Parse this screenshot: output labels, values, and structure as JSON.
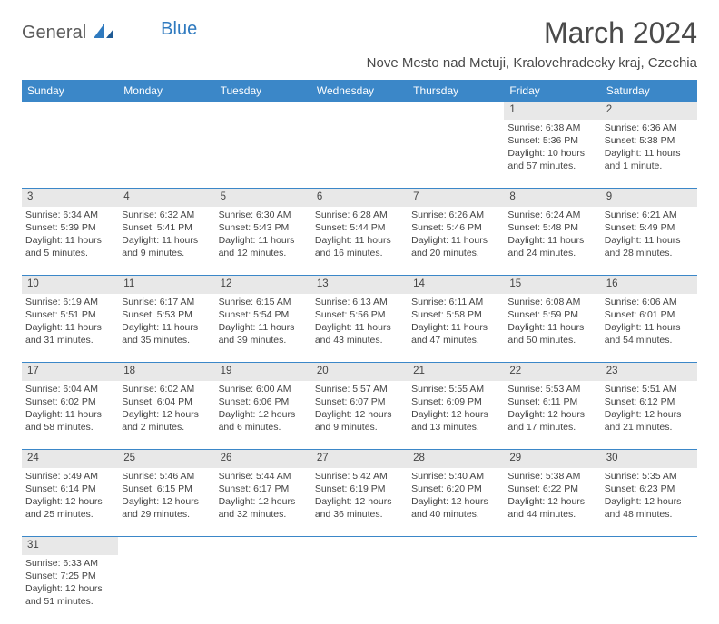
{
  "logo": {
    "text1": "General",
    "text2": "Blue"
  },
  "title": "March 2024",
  "location": "Nove Mesto nad Metuji, Kralovehradecky kraj, Czechia",
  "weekdays": [
    "Sunday",
    "Monday",
    "Tuesday",
    "Wednesday",
    "Thursday",
    "Friday",
    "Saturday"
  ],
  "header_bg": "#3b87c8",
  "header_fg": "#ffffff",
  "daynum_bg": "#e8e8e8",
  "divider_color": "#3b87c8",
  "weeks": [
    [
      null,
      null,
      null,
      null,
      null,
      {
        "n": "1",
        "sr": "Sunrise: 6:38 AM",
        "ss": "Sunset: 5:36 PM",
        "d1": "Daylight: 10 hours",
        "d2": "and 57 minutes."
      },
      {
        "n": "2",
        "sr": "Sunrise: 6:36 AM",
        "ss": "Sunset: 5:38 PM",
        "d1": "Daylight: 11 hours",
        "d2": "and 1 minute."
      }
    ],
    [
      {
        "n": "3",
        "sr": "Sunrise: 6:34 AM",
        "ss": "Sunset: 5:39 PM",
        "d1": "Daylight: 11 hours",
        "d2": "and 5 minutes."
      },
      {
        "n": "4",
        "sr": "Sunrise: 6:32 AM",
        "ss": "Sunset: 5:41 PM",
        "d1": "Daylight: 11 hours",
        "d2": "and 9 minutes."
      },
      {
        "n": "5",
        "sr": "Sunrise: 6:30 AM",
        "ss": "Sunset: 5:43 PM",
        "d1": "Daylight: 11 hours",
        "d2": "and 12 minutes."
      },
      {
        "n": "6",
        "sr": "Sunrise: 6:28 AM",
        "ss": "Sunset: 5:44 PM",
        "d1": "Daylight: 11 hours",
        "d2": "and 16 minutes."
      },
      {
        "n": "7",
        "sr": "Sunrise: 6:26 AM",
        "ss": "Sunset: 5:46 PM",
        "d1": "Daylight: 11 hours",
        "d2": "and 20 minutes."
      },
      {
        "n": "8",
        "sr": "Sunrise: 6:24 AM",
        "ss": "Sunset: 5:48 PM",
        "d1": "Daylight: 11 hours",
        "d2": "and 24 minutes."
      },
      {
        "n": "9",
        "sr": "Sunrise: 6:21 AM",
        "ss": "Sunset: 5:49 PM",
        "d1": "Daylight: 11 hours",
        "d2": "and 28 minutes."
      }
    ],
    [
      {
        "n": "10",
        "sr": "Sunrise: 6:19 AM",
        "ss": "Sunset: 5:51 PM",
        "d1": "Daylight: 11 hours",
        "d2": "and 31 minutes."
      },
      {
        "n": "11",
        "sr": "Sunrise: 6:17 AM",
        "ss": "Sunset: 5:53 PM",
        "d1": "Daylight: 11 hours",
        "d2": "and 35 minutes."
      },
      {
        "n": "12",
        "sr": "Sunrise: 6:15 AM",
        "ss": "Sunset: 5:54 PM",
        "d1": "Daylight: 11 hours",
        "d2": "and 39 minutes."
      },
      {
        "n": "13",
        "sr": "Sunrise: 6:13 AM",
        "ss": "Sunset: 5:56 PM",
        "d1": "Daylight: 11 hours",
        "d2": "and 43 minutes."
      },
      {
        "n": "14",
        "sr": "Sunrise: 6:11 AM",
        "ss": "Sunset: 5:58 PM",
        "d1": "Daylight: 11 hours",
        "d2": "and 47 minutes."
      },
      {
        "n": "15",
        "sr": "Sunrise: 6:08 AM",
        "ss": "Sunset: 5:59 PM",
        "d1": "Daylight: 11 hours",
        "d2": "and 50 minutes."
      },
      {
        "n": "16",
        "sr": "Sunrise: 6:06 AM",
        "ss": "Sunset: 6:01 PM",
        "d1": "Daylight: 11 hours",
        "d2": "and 54 minutes."
      }
    ],
    [
      {
        "n": "17",
        "sr": "Sunrise: 6:04 AM",
        "ss": "Sunset: 6:02 PM",
        "d1": "Daylight: 11 hours",
        "d2": "and 58 minutes."
      },
      {
        "n": "18",
        "sr": "Sunrise: 6:02 AM",
        "ss": "Sunset: 6:04 PM",
        "d1": "Daylight: 12 hours",
        "d2": "and 2 minutes."
      },
      {
        "n": "19",
        "sr": "Sunrise: 6:00 AM",
        "ss": "Sunset: 6:06 PM",
        "d1": "Daylight: 12 hours",
        "d2": "and 6 minutes."
      },
      {
        "n": "20",
        "sr": "Sunrise: 5:57 AM",
        "ss": "Sunset: 6:07 PM",
        "d1": "Daylight: 12 hours",
        "d2": "and 9 minutes."
      },
      {
        "n": "21",
        "sr": "Sunrise: 5:55 AM",
        "ss": "Sunset: 6:09 PM",
        "d1": "Daylight: 12 hours",
        "d2": "and 13 minutes."
      },
      {
        "n": "22",
        "sr": "Sunrise: 5:53 AM",
        "ss": "Sunset: 6:11 PM",
        "d1": "Daylight: 12 hours",
        "d2": "and 17 minutes."
      },
      {
        "n": "23",
        "sr": "Sunrise: 5:51 AM",
        "ss": "Sunset: 6:12 PM",
        "d1": "Daylight: 12 hours",
        "d2": "and 21 minutes."
      }
    ],
    [
      {
        "n": "24",
        "sr": "Sunrise: 5:49 AM",
        "ss": "Sunset: 6:14 PM",
        "d1": "Daylight: 12 hours",
        "d2": "and 25 minutes."
      },
      {
        "n": "25",
        "sr": "Sunrise: 5:46 AM",
        "ss": "Sunset: 6:15 PM",
        "d1": "Daylight: 12 hours",
        "d2": "and 29 minutes."
      },
      {
        "n": "26",
        "sr": "Sunrise: 5:44 AM",
        "ss": "Sunset: 6:17 PM",
        "d1": "Daylight: 12 hours",
        "d2": "and 32 minutes."
      },
      {
        "n": "27",
        "sr": "Sunrise: 5:42 AM",
        "ss": "Sunset: 6:19 PM",
        "d1": "Daylight: 12 hours",
        "d2": "and 36 minutes."
      },
      {
        "n": "28",
        "sr": "Sunrise: 5:40 AM",
        "ss": "Sunset: 6:20 PM",
        "d1": "Daylight: 12 hours",
        "d2": "and 40 minutes."
      },
      {
        "n": "29",
        "sr": "Sunrise: 5:38 AM",
        "ss": "Sunset: 6:22 PM",
        "d1": "Daylight: 12 hours",
        "d2": "and 44 minutes."
      },
      {
        "n": "30",
        "sr": "Sunrise: 5:35 AM",
        "ss": "Sunset: 6:23 PM",
        "d1": "Daylight: 12 hours",
        "d2": "and 48 minutes."
      }
    ],
    [
      {
        "n": "31",
        "sr": "Sunrise: 6:33 AM",
        "ss": "Sunset: 7:25 PM",
        "d1": "Daylight: 12 hours",
        "d2": "and 51 minutes."
      },
      null,
      null,
      null,
      null,
      null,
      null
    ]
  ]
}
